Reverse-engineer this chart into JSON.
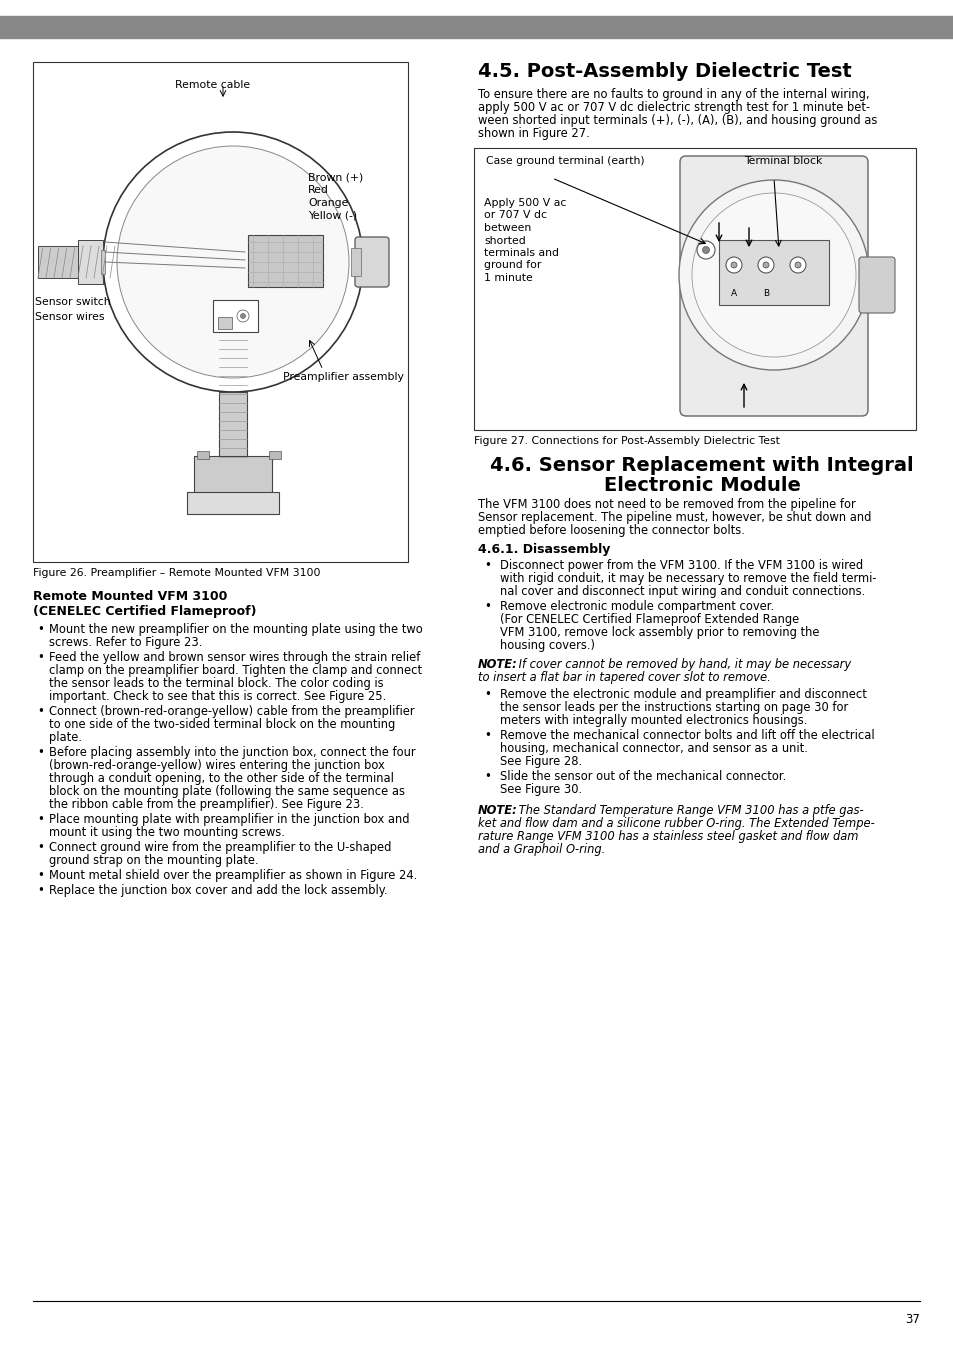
{
  "page_number": "37",
  "bg_color": "#ffffff",
  "header_bar_color": "#888888",
  "section_45_title": "4.5. Post-Assembly Dielectric Test",
  "section_45_body_lines": [
    "To ensure there are no faults to ground in any of the internal wiring,",
    "apply 500 V ac or 707 V dc dielectric strength test for 1 minute bet-",
    "ween shorted input terminals (+), (-), (A), (B), and housing ground as",
    "shown in Figure 27."
  ],
  "fig26_caption": "Figure 26. Preamplifier – Remote Mounted VFM 3100",
  "fig27_caption": "Figure 27. Connections for Post-Assembly Dielectric Test",
  "remote_mounted_title": "Remote Mounted VFM 3100",
  "remote_mounted_subtitle": "(CENELEC Certified Flameproof)",
  "remote_mounted_bullets": [
    "Mount the new preamplifier on the mounting plate using the two\nscrews. Refer to Figure 23.",
    "Feed the yellow and brown sensor wires through the strain relief\nclamp on the preamplifier board. Tighten the clamp and connect\nthe sensor leads to the terminal block. The color coding is\nimportant. Check to see that this is correct. See Figure 25.",
    "Connect (brown-red-orange-yellow) cable from the preamplifier\nto one side of the two-sided terminal block on the mounting\nplate.",
    "Before placing assembly into the junction box, connect the four\n(brown-red-orange-yellow) wires entering the junction box\nthrough a conduit opening, to the other side of the terminal\nblock on the mounting plate (following the same sequence as\nthe ribbon cable from the preamplifier). See Figure 23.",
    "Place mounting plate with preamplifier in the junction box and\nmount it using the two mounting screws.",
    "Connect ground wire from the preamplifier to the U-shaped\nground strap on the mounting plate.",
    "Mount metal shield over the preamplifier as shown in Figure 24.",
    "Replace the junction box cover and add the lock assembly."
  ],
  "section_46_title_line1": "4.6. Sensor Replacement with Integral",
  "section_46_title_line2": "Electronic Module",
  "section_46_body_lines": [
    "The VFM 3100 does not need to be removed from the pipeline for",
    "Sensor replacement. The pipeline must, however, be shut down and",
    "emptied before loosening the connector bolts."
  ],
  "section_461_title": "4.6.1. Disassembly",
  "section_461_bullets1": [
    "Disconnect power from the VFM 3100. If the VFM 3100 is wired\nwith rigid conduit, it may be necessary to remove the field termi-\nnal cover and disconnect input wiring and conduit connections.",
    "Remove electronic module compartment cover.\n(For CENELEC Certified Flameproof Extended Range\nVFM 3100, remove lock assembly prior to removing the\nhousing covers.)"
  ],
  "note_1_bold": "NOTE:",
  "note_1_italic": " If cover cannot be removed by hand, it may be necessary\nto insert a flat bar in tapered cover slot to remove.",
  "section_461_bullets2": [
    "Remove the electronic module and preamplifier and disconnect\nthe sensor leads per the instructions starting on page 30 for\nmeters with integrally mounted electronics housings.",
    "Remove the mechanical connector bolts and lift off the electrical\nhousing, mechanical connector, and sensor as a unit.\nSee Figure 28.",
    "Slide the sensor out of the mechanical connector.\nSee Figure 30."
  ],
  "note_2_bold": "NOTE:",
  "note_2_italic": " The Standard Temperature Range VFM 3100 has a ptfe gas-\nket and flow dam and a silicone rubber O-ring. The Extended Tempe-\nrature Range VFM 3100 has a stainless steel gasket and flow dam\nand a Graphoil O-ring."
}
